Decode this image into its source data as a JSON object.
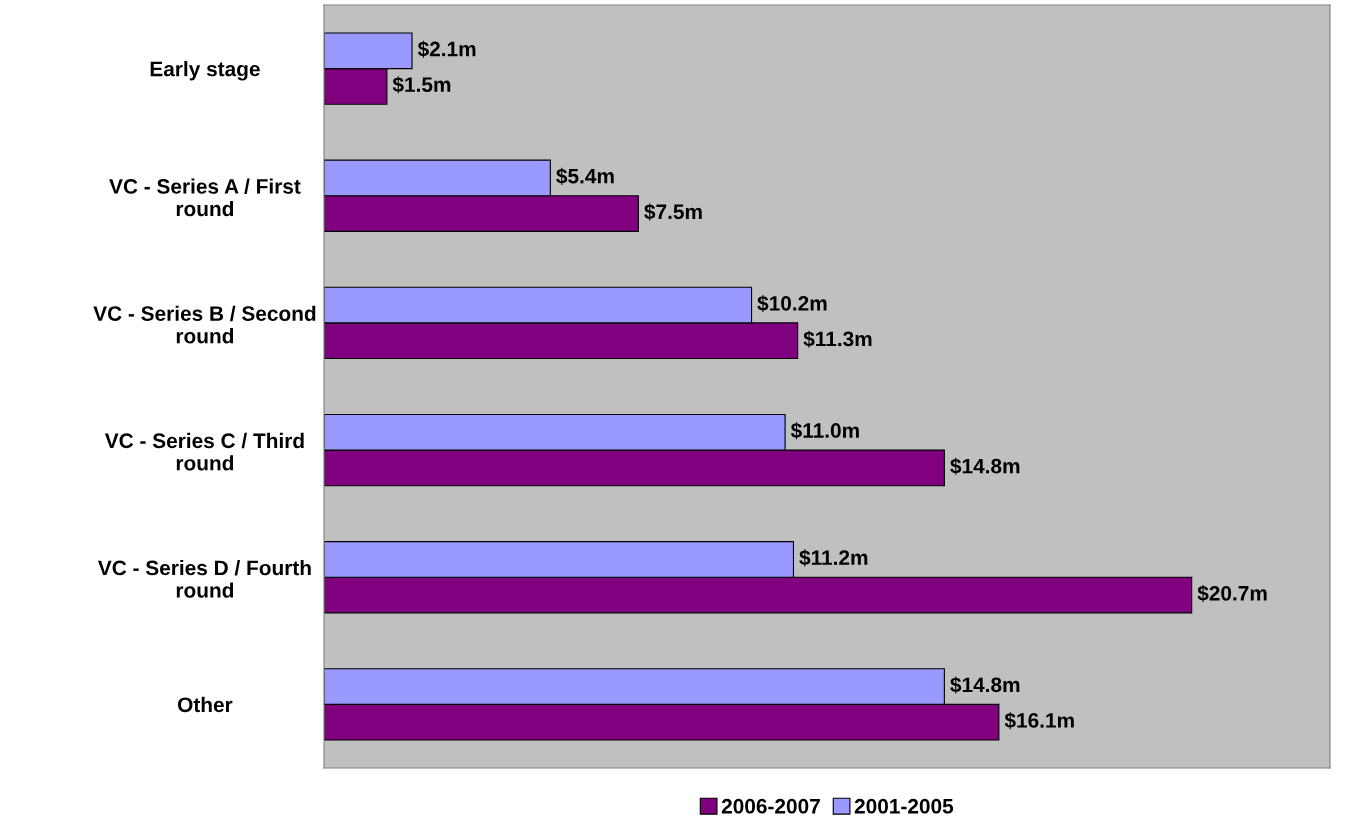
{
  "chart_data": {
    "type": "bar",
    "orientation": "horizontal",
    "categories": [
      "Early stage",
      "VC - Series A / First round",
      "VC - Series B / Second round",
      "VC - Series C / Third round",
      "VC - Series D / Fourth round",
      "Other"
    ],
    "series": [
      {
        "name": "2006-2007",
        "color": "#800080",
        "values": [
          1.5,
          7.5,
          11.3,
          14.8,
          20.7,
          16.1
        ],
        "value_labels": [
          "$1.5m",
          "$7.5m",
          "$11.3m",
          "$14.8m",
          "$20.7m",
          "$16.1m"
        ]
      },
      {
        "name": "2001-2005",
        "color": "#9999ff",
        "values": [
          2.1,
          5.4,
          10.2,
          11.0,
          11.2,
          14.8
        ],
        "value_labels": [
          "$2.1m",
          "$5.4m",
          "$10.2m",
          "$11.0m",
          "$11.2m",
          "$14.8m"
        ]
      }
    ],
    "xlim": [
      0,
      24
    ],
    "tick_labels": "y",
    "grid": false,
    "legend": "bottom"
  }
}
